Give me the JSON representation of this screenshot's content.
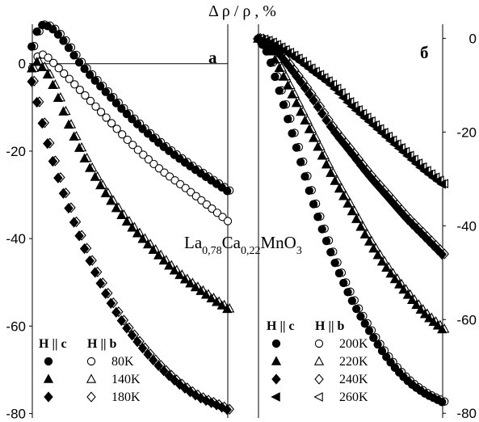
{
  "title": "Δ ρ / ρ , %",
  "formula": {
    "parts": [
      {
        "t": "La",
        "sub": false
      },
      {
        "t": "0,78",
        "sub": true
      },
      {
        "t": "Ca",
        "sub": false
      },
      {
        "t": "0,22",
        "sub": true
      },
      {
        "t": "MnO",
        "sub": false
      },
      {
        "t": "3",
        "sub": true
      }
    ]
  },
  "chart_data": [
    {
      "type": "scatter",
      "panel_label": "а",
      "ylabel": "Δ ρ / ρ , %",
      "ylim": [
        -81,
        9
      ],
      "xlim": [
        0,
        1
      ],
      "yticks": [
        0,
        -20,
        -40,
        -60,
        -80
      ],
      "tick_side": "left",
      "zero_line": true,
      "legend": {
        "header_closed": "H || c",
        "header_open": "H || b",
        "entries": [
          "80K",
          "140K",
          "180K"
        ]
      },
      "series": [
        {
          "name": "80K",
          "marker": "circle",
          "filled": "both",
          "x": [
            0,
            0.04,
            0.09,
            0.15,
            0.25,
            0.35,
            0.5,
            0.65,
            0.8,
            1.0
          ],
          "y": [
            4,
            8.5,
            8.5,
            6,
            0,
            -5,
            -12,
            -18,
            -23,
            -29
          ]
        },
        {
          "name": "80K",
          "marker": "circle",
          "filled": false,
          "x": [
            0,
            0.025,
            0.06,
            0.1,
            0.2,
            0.35,
            0.5,
            0.65,
            0.8,
            1.0
          ],
          "y": [
            -1,
            1.5,
            2,
            0.5,
            -4,
            -11,
            -18,
            -24,
            -29,
            -36
          ]
        },
        {
          "name": "140K",
          "marker": "triangle",
          "filled": "both",
          "x": [
            0,
            0.02,
            0.05,
            0.1,
            0.2,
            0.3,
            0.45,
            0.6,
            0.75,
            0.9,
            1.0
          ],
          "y": [
            -1,
            0.5,
            -0.5,
            -4,
            -15,
            -24,
            -34,
            -41.5,
            -48,
            -53,
            -56
          ]
        },
        {
          "name": "180K",
          "marker": "diamond",
          "filled": "both",
          "x": [
            0,
            0.04,
            0.08,
            0.15,
            0.25,
            0.35,
            0.45,
            0.55,
            0.65,
            0.75,
            0.85,
            0.95,
            1.0
          ],
          "y": [
            -4,
            -11,
            -18,
            -28,
            -40,
            -50,
            -58,
            -64,
            -69,
            -73,
            -76,
            -78,
            -79
          ]
        }
      ]
    },
    {
      "type": "scatter",
      "panel_label": "б",
      "ylim": [
        -81,
        3
      ],
      "xlim": [
        0,
        1
      ],
      "yticks": [
        0,
        -20,
        -40,
        -60,
        -80
      ],
      "tick_side": "right",
      "zero_line": false,
      "legend": {
        "header_closed": "H || c",
        "header_open": "H || b",
        "entries": [
          "200K",
          "220K",
          "240K",
          "260K"
        ]
      },
      "series": [
        {
          "name": "200K",
          "marker": "circle",
          "filled": "both",
          "x": [
            0,
            0.05,
            0.1,
            0.2,
            0.3,
            0.4,
            0.5,
            0.6,
            0.7,
            0.8,
            0.9,
            1.0
          ],
          "y": [
            0,
            -3,
            -9,
            -22,
            -35,
            -46,
            -55,
            -62,
            -68,
            -72.5,
            -75.5,
            -77.5
          ]
        },
        {
          "name": "220K",
          "marker": "triangle",
          "filled": "both",
          "x": [
            0,
            0.05,
            0.1,
            0.2,
            0.3,
            0.4,
            0.5,
            0.6,
            0.7,
            0.8,
            0.9,
            1.0
          ],
          "y": [
            0,
            -1.5,
            -5,
            -13,
            -21,
            -29,
            -36,
            -43,
            -49,
            -54,
            -58.5,
            -62
          ]
        },
        {
          "name": "240K",
          "marker": "diamond",
          "filled": "both",
          "x": [
            0,
            0.05,
            0.1,
            0.2,
            0.3,
            0.4,
            0.5,
            0.6,
            0.7,
            0.8,
            0.9,
            1.0
          ],
          "y": [
            0,
            -0.8,
            -2.5,
            -7.5,
            -13,
            -19,
            -24,
            -29,
            -33.5,
            -38,
            -42,
            -46
          ]
        },
        {
          "name": "260K",
          "marker": "triangle-left",
          "filled": "both",
          "x": [
            0,
            0.05,
            0.1,
            0.2,
            0.3,
            0.4,
            0.5,
            0.6,
            0.7,
            0.8,
            0.9,
            1.0
          ],
          "y": [
            0,
            -0.5,
            -1.5,
            -4,
            -7,
            -10,
            -14,
            -17.5,
            -21,
            -24.5,
            -28,
            -31
          ]
        }
      ]
    }
  ]
}
